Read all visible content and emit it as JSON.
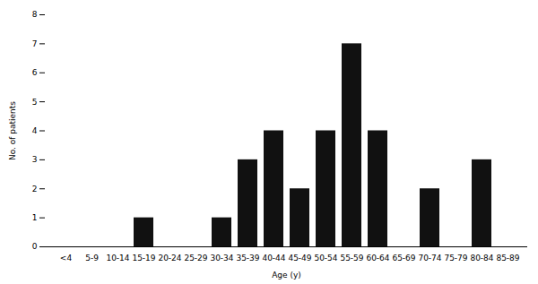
{
  "chart_data": {
    "type": "bar",
    "categories": [
      "<4",
      "5-9",
      "10-14",
      "15-19",
      "20-24",
      "25-29",
      "30-34",
      "35-39",
      "40-44",
      "45-49",
      "50-54",
      "55-59",
      "60-64",
      "65-69",
      "70-74",
      "75-79",
      "80-84",
      "85-89"
    ],
    "values": [
      0,
      0,
      0,
      1,
      0,
      0,
      1,
      3,
      4,
      2,
      4,
      7,
      4,
      0,
      2,
      0,
      3,
      0
    ],
    "color": "#111111",
    "xlabel": "Age (y)",
    "ylabel": "No. of patients",
    "ylim": [
      0,
      8
    ],
    "yticks": [
      0,
      1,
      2,
      3,
      4,
      5,
      6,
      7,
      8
    ]
  }
}
